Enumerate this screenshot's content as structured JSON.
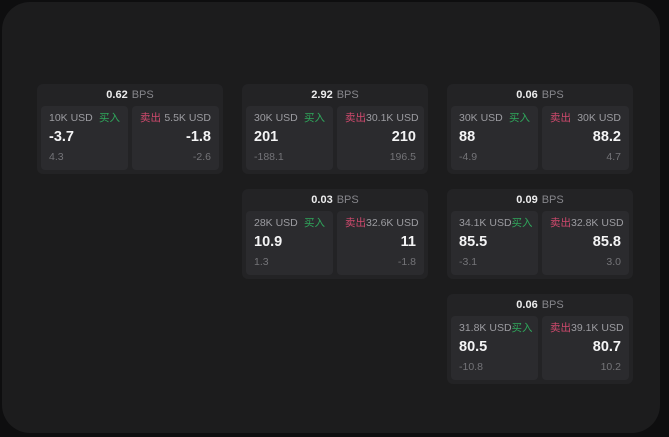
{
  "colors": {
    "buy_green": "#2fa85c",
    "sell_red": "#d14a6e",
    "panel_bg": "#1c1c1d",
    "card_bg": "#232325",
    "pane_bg": "#2b2b2e"
  },
  "cards": [
    {
      "bps": "0.62",
      "unit": "BPS",
      "buy": {
        "amount": "10K USD",
        "label": "买入",
        "value": "-3.7",
        "delta": "4.3"
      },
      "sell": {
        "label": "卖出",
        "amount": "5.5K USD",
        "value": "-1.8",
        "delta": "-2.6"
      }
    },
    {
      "bps": "2.92",
      "unit": "BPS",
      "buy": {
        "amount": "30K USD",
        "label": "买入",
        "value": "201",
        "delta": "-188.1"
      },
      "sell": {
        "label": "卖出",
        "amount": "30.1K USD",
        "value": "210",
        "delta": "196.5"
      }
    },
    {
      "bps": "0.06",
      "unit": "BPS",
      "buy": {
        "amount": "30K USD",
        "label": "买入",
        "value": "88",
        "delta": "-4.9"
      },
      "sell": {
        "label": "卖出",
        "amount": "30K USD",
        "value": "88.2",
        "delta": "4.7"
      }
    },
    {
      "bps": "0.03",
      "unit": "BPS",
      "buy": {
        "amount": "28K USD",
        "label": "买入",
        "value": "10.9",
        "delta": "1.3"
      },
      "sell": {
        "label": "卖出",
        "amount": "32.6K USD",
        "value": "11",
        "delta": "-1.8"
      }
    },
    {
      "bps": "0.09",
      "unit": "BPS",
      "buy": {
        "amount": "34.1K USD",
        "label": "买入",
        "value": "85.5",
        "delta": "-3.1"
      },
      "sell": {
        "label": "卖出",
        "amount": "32.8K USD",
        "value": "85.8",
        "delta": "3.0"
      }
    },
    {
      "bps": "0.06",
      "unit": "BPS",
      "buy": {
        "amount": "31.8K USD",
        "label": "买入",
        "value": "80.5",
        "delta": "-10.8"
      },
      "sell": {
        "label": "卖出",
        "amount": "39.1K USD",
        "value": "80.7",
        "delta": "10.2"
      }
    }
  ]
}
